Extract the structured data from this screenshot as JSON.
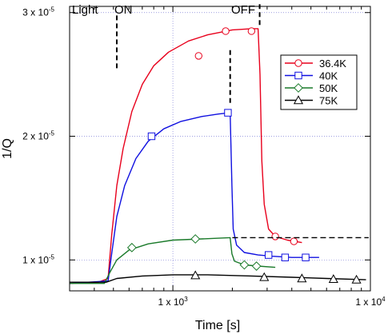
{
  "chart_data": {
    "type": "line",
    "title": "",
    "xlabel": "Time [s]",
    "ylabel": "1/Q",
    "xscale": "log",
    "xlim": [
      300,
      10000
    ],
    "ylim": [
      7.5e-06,
      3.05e-05
    ],
    "grid": true,
    "x_ticks": [
      {
        "value": 1000,
        "label": "1 x 10",
        "exp": "3"
      },
      {
        "value": 10000,
        "label": "1 x 10",
        "exp": "4"
      }
    ],
    "y_ticks": [
      {
        "value": 1e-05,
        "label": "1 x 10",
        "exp": "-5"
      },
      {
        "value": 2e-05,
        "label": "2 x 10",
        "exp": "-5"
      },
      {
        "value": 3e-05,
        "label": "3 x 10",
        "exp": "-5"
      }
    ],
    "annotations": {
      "light": "Light",
      "on": "ON",
      "off": "OFF"
    },
    "legend_position": "top-right",
    "series": [
      {
        "name": "36.4K",
        "color": "#e8001c",
        "marker": "circle",
        "points": [
          [
            300,
            8.1e-06
          ],
          [
            420,
            8.2e-06
          ],
          [
            470,
            8.5e-06
          ],
          [
            490,
            1.2e-05
          ],
          [
            520,
            1.6e-05
          ],
          [
            560,
            1.9e-05
          ],
          [
            620,
            2.2e-05
          ],
          [
            700,
            2.42e-05
          ],
          [
            800,
            2.57e-05
          ],
          [
            950,
            2.68e-05
          ],
          [
            1200,
            2.77e-05
          ],
          [
            1500,
            2.82e-05
          ],
          [
            2000,
            2.86e-05
          ],
          [
            2500,
            2.87e-05
          ],
          [
            2700,
            2.87e-05
          ],
          [
            2760,
            2.5e-05
          ],
          [
            2820,
            1.8e-05
          ],
          [
            2900,
            1.45e-05
          ],
          [
            3050,
            1.25e-05
          ],
          [
            3300,
            1.19e-05
          ],
          [
            3800,
            1.16e-05
          ],
          [
            4500,
            1.14e-05
          ]
        ],
        "markers": [
          [
            1350,
            2.65e-05
          ],
          [
            1850,
            2.85e-05
          ],
          [
            2500,
            2.85e-05
          ],
          [
            3300,
            1.19e-05
          ],
          [
            4100,
            1.15e-05
          ]
        ]
      },
      {
        "name": "40K",
        "color": "#1010e0",
        "marker": "square",
        "points": [
          [
            300,
            8.1e-06
          ],
          [
            470,
            8.3e-06
          ],
          [
            490,
            1.05e-05
          ],
          [
            520,
            1.35e-05
          ],
          [
            570,
            1.6e-05
          ],
          [
            650,
            1.82e-05
          ],
          [
            750,
            1.96e-05
          ],
          [
            900,
            2.06e-05
          ],
          [
            1100,
            2.12e-05
          ],
          [
            1400,
            2.16e-05
          ],
          [
            1700,
            2.18e-05
          ],
          [
            1950,
            2.19e-05
          ],
          [
            1990,
            1.6e-05
          ],
          [
            2020,
            1.25e-05
          ],
          [
            2100,
            1.12e-05
          ],
          [
            2300,
            1.06e-05
          ],
          [
            2700,
            1.04e-05
          ],
          [
            3200,
            1.03e-05
          ],
          [
            4000,
            1.02e-05
          ],
          [
            5500,
            1.02e-05
          ]
        ],
        "markers": [
          [
            780,
            2e-05
          ],
          [
            1900,
            2.19e-05
          ],
          [
            3050,
            1.04e-05
          ],
          [
            3700,
            1.02e-05
          ],
          [
            4700,
            1.02e-05
          ]
        ]
      },
      {
        "name": "50K",
        "color": "#1a7a2a",
        "marker": "diamond",
        "points": [
          [
            300,
            8.1e-06
          ],
          [
            450,
            8.1e-06
          ],
          [
            480,
            9e-06
          ],
          [
            520,
            1e-05
          ],
          [
            600,
            1.08e-05
          ],
          [
            750,
            1.13e-05
          ],
          [
            1000,
            1.16e-05
          ],
          [
            1400,
            1.17e-05
          ],
          [
            1950,
            1.18e-05
          ],
          [
            1990,
            1.05e-05
          ],
          [
            2050,
            9.9e-06
          ],
          [
            2300,
            9.6e-06
          ],
          [
            2700,
            9.5e-06
          ],
          [
            3300,
            9.4e-06
          ]
        ],
        "markers": [
          [
            620,
            1.1e-05
          ],
          [
            1300,
            1.17e-05
          ],
          [
            2300,
            9.6e-06
          ],
          [
            2650,
            9.5e-06
          ]
        ]
      },
      {
        "name": "75K",
        "color": "#000000",
        "marker": "triangle",
        "points": [
          [
            300,
            8.2e-06
          ],
          [
            460,
            8.2e-06
          ],
          [
            520,
            8.5e-06
          ],
          [
            700,
            8.7e-06
          ],
          [
            1000,
            8.8e-06
          ],
          [
            1500,
            8.8e-06
          ],
          [
            2500,
            8.7e-06
          ],
          [
            4000,
            8.6e-06
          ],
          [
            6000,
            8.5e-06
          ],
          [
            9500,
            8.4e-06
          ]
        ],
        "markers": [
          [
            1300,
            8.75e-06
          ],
          [
            2900,
            8.6e-06
          ],
          [
            4500,
            8.5e-06
          ],
          [
            6500,
            8.45e-06
          ],
          [
            8500,
            8.4e-06
          ]
        ]
      }
    ],
    "reference_lines": [
      {
        "kind": "vertical",
        "x": 520,
        "y_from": 2.55e-05,
        "y_to": 3e-05
      },
      {
        "kind": "vertical",
        "x": 1950,
        "y_from": 2.27e-05,
        "y_to": 2.72e-05
      },
      {
        "kind": "vertical",
        "x": 2750,
        "y_from": 2.9e-05,
        "y_to": 3.07e-05
      },
      {
        "kind": "horizontal",
        "y": 1.18e-05,
        "x_from": 2000,
        "x_to": 9800
      }
    ]
  }
}
